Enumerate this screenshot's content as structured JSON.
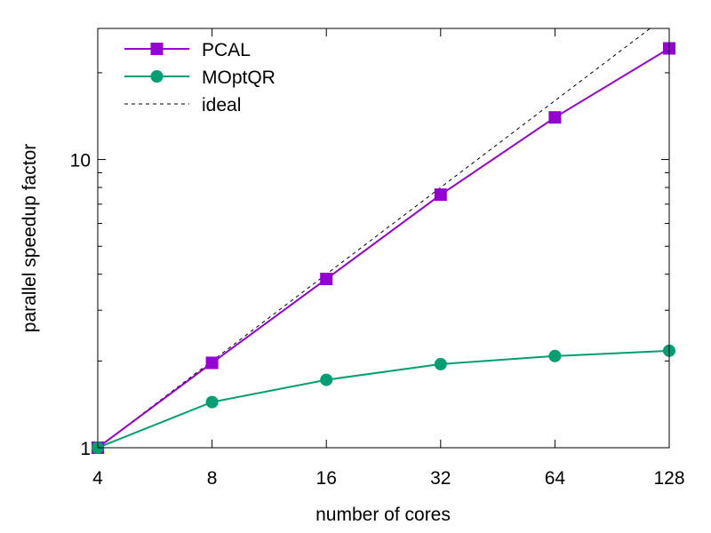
{
  "chart_data": {
    "type": "line",
    "xlabel": "number of cores",
    "ylabel": "parallel speedup factor",
    "x": [
      4,
      8,
      16,
      32,
      64,
      128
    ],
    "x_scale": "log2",
    "y_scale": "log10",
    "xlim": [
      4,
      128
    ],
    "ylim": [
      1,
      28.5
    ],
    "x_ticks": [
      "4",
      "8",
      "16",
      "32",
      "64",
      "128"
    ],
    "y_ticks": [
      "1",
      "10"
    ],
    "grid": false,
    "legend_position": "top-left",
    "series": [
      {
        "name": "PCAL",
        "values": [
          1,
          1.97,
          3.85,
          7.55,
          14.0,
          24.3
        ],
        "color": "#9400d3",
        "marker": "square"
      },
      {
        "name": "MOptQR",
        "values": [
          1,
          1.44,
          1.72,
          1.95,
          2.08,
          2.17
        ],
        "color": "#009e73",
        "marker": "circle"
      },
      {
        "name": "ideal",
        "values": [
          1,
          2,
          4,
          8,
          16,
          32
        ],
        "color": "#000000",
        "marker": "none",
        "dashed": true
      }
    ]
  }
}
